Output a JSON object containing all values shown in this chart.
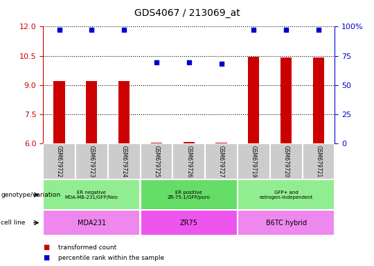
{
  "title": "GDS4067 / 213069_at",
  "samples": [
    "GSM679722",
    "GSM679723",
    "GSM679724",
    "GSM679725",
    "GSM679726",
    "GSM679727",
    "GSM679719",
    "GSM679720",
    "GSM679721"
  ],
  "bar_values": [
    9.2,
    9.2,
    9.2,
    6.05,
    6.1,
    6.05,
    10.45,
    10.4,
    10.4
  ],
  "scatter_values": [
    11.85,
    11.85,
    11.85,
    10.15,
    10.15,
    10.1,
    11.85,
    11.85,
    11.85
  ],
  "ylim_left": [
    6,
    12
  ],
  "ylim_right": [
    0,
    100
  ],
  "left_ticks": [
    6,
    7.5,
    9,
    10.5,
    12
  ],
  "right_ticks": [
    0,
    25,
    50,
    75,
    100
  ],
  "right_tick_labels": [
    "0",
    "25",
    "50",
    "75",
    "100%"
  ],
  "geno_groups": [
    {
      "label": "ER negative\nMDA-MB-231/GFP/Neo",
      "start": 0,
      "end": 3,
      "color": "#90ee90"
    },
    {
      "label": "ER positive\nZR-75-1/GFP/puro",
      "start": 3,
      "end": 6,
      "color": "#66dd66"
    },
    {
      "label": "GFP+ and\nestrogen-independent",
      "start": 6,
      "end": 9,
      "color": "#90ee90"
    }
  ],
  "cell_groups": [
    {
      "label": "MDA231",
      "start": 0,
      "end": 3,
      "color": "#ee88ee"
    },
    {
      "label": "ZR75",
      "start": 3,
      "end": 6,
      "color": "#ee55ee"
    },
    {
      "label": "B6TC hybrid",
      "start": 6,
      "end": 9,
      "color": "#ee88ee"
    }
  ],
  "bar_color": "#cc0000",
  "scatter_color": "#0000cc",
  "bar_width": 0.35,
  "left_tick_color": "#cc0000",
  "right_tick_color": "#0000cc",
  "sample_box_color": "#cccccc",
  "legend_items": [
    {
      "color": "#cc0000",
      "label": "transformed count"
    },
    {
      "color": "#0000cc",
      "label": "percentile rank within the sample"
    }
  ],
  "annotation_genotype": "genotype/variation",
  "annotation_cellline": "cell line"
}
